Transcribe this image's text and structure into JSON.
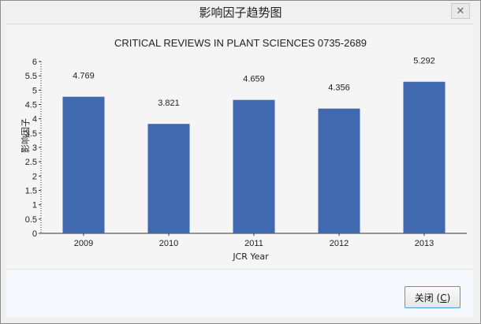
{
  "window": {
    "title": "影响因子趋势图",
    "close_glyph": "✕"
  },
  "buttons": {
    "close_label": "关闭 (",
    "close_accel": "C",
    "close_suffix": ")"
  },
  "chart_data": {
    "type": "bar",
    "title": "CRITICAL REVIEWS IN PLANT SCIENCES  0735-2689",
    "xlabel": "JCR Year",
    "ylabel": "影响因子",
    "categories": [
      "2009",
      "2010",
      "2011",
      "2012",
      "2013"
    ],
    "values": [
      4.769,
      3.821,
      4.659,
      4.356,
      5.292
    ],
    "data_labels": [
      "4.769",
      "3.821",
      "4.659",
      "4.356",
      "5.292"
    ],
    "ylim": [
      0,
      6
    ],
    "yticks": [
      "0",
      "0.5",
      "1",
      "1.5",
      "2",
      "2.5",
      "3",
      "3.5",
      "4",
      "4.5",
      "5",
      "5.5",
      "6"
    ],
    "grid": false,
    "bar_color": "#4169b0"
  }
}
